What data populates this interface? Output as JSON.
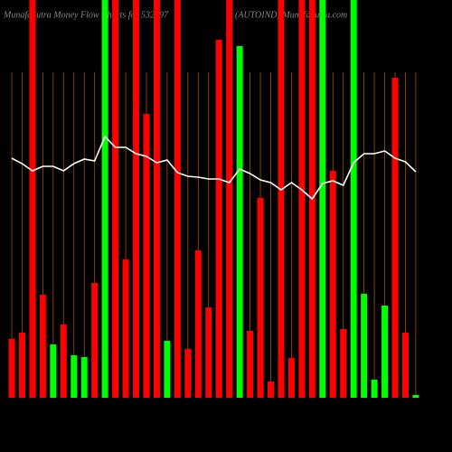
{
  "chart_data": {
    "type": "bar",
    "title": "MunafaSutra  Money Flow  Charts for 532797",
    "subtitle": "(AUTOIND) MunafaSutra.com",
    "values": [
      65,
      72,
      440,
      114,
      59,
      81,
      47,
      45,
      127,
      440,
      440,
      153,
      440,
      314,
      440,
      63,
      440,
      54,
      163,
      100,
      396,
      440,
      389,
      74,
      221,
      18,
      440,
      44,
      440,
      440,
      440,
      251,
      76,
      440,
      115,
      20,
      102,
      354,
      72,
      3
    ],
    "colors": [
      "#ff0000",
      "#ff0000",
      "#ff0000",
      "#ff0000",
      "#00ff00",
      "#ff0000",
      "#00ff00",
      "#00ff00",
      "#ff0000",
      "#00ff00",
      "#ff0000",
      "#ff0000",
      "#ff0000",
      "#ff0000",
      "#ff0000",
      "#00ff00",
      "#ff0000",
      "#ff0000",
      "#ff0000",
      "#ff0000",
      "#ff0000",
      "#ff0000",
      "#00ff00",
      "#ff0000",
      "#ff0000",
      "#ff0000",
      "#ff0000",
      "#ff0000",
      "#ff0000",
      "#ff0000",
      "#00ff00",
      "#ff0000",
      "#ff0000",
      "#00ff00",
      "#00ff00",
      "#00ff00",
      "#00ff00",
      "#ff0000",
      "#ff0000",
      "#00ff00"
    ],
    "line": {
      "color": "#ffffff",
      "values": [
        265,
        259,
        251,
        256,
        256,
        251,
        259,
        264,
        262,
        289,
        277,
        277,
        270,
        267,
        260,
        263,
        249,
        245,
        244,
        242,
        242,
        238,
        253,
        248,
        241,
        238,
        230,
        238,
        230,
        220,
        237,
        240,
        235,
        260,
        270,
        270,
        273,
        265,
        261,
        250
      ]
    },
    "ylim": [
      0,
      440
    ],
    "grid": true,
    "grid_color": "#a0520a"
  }
}
